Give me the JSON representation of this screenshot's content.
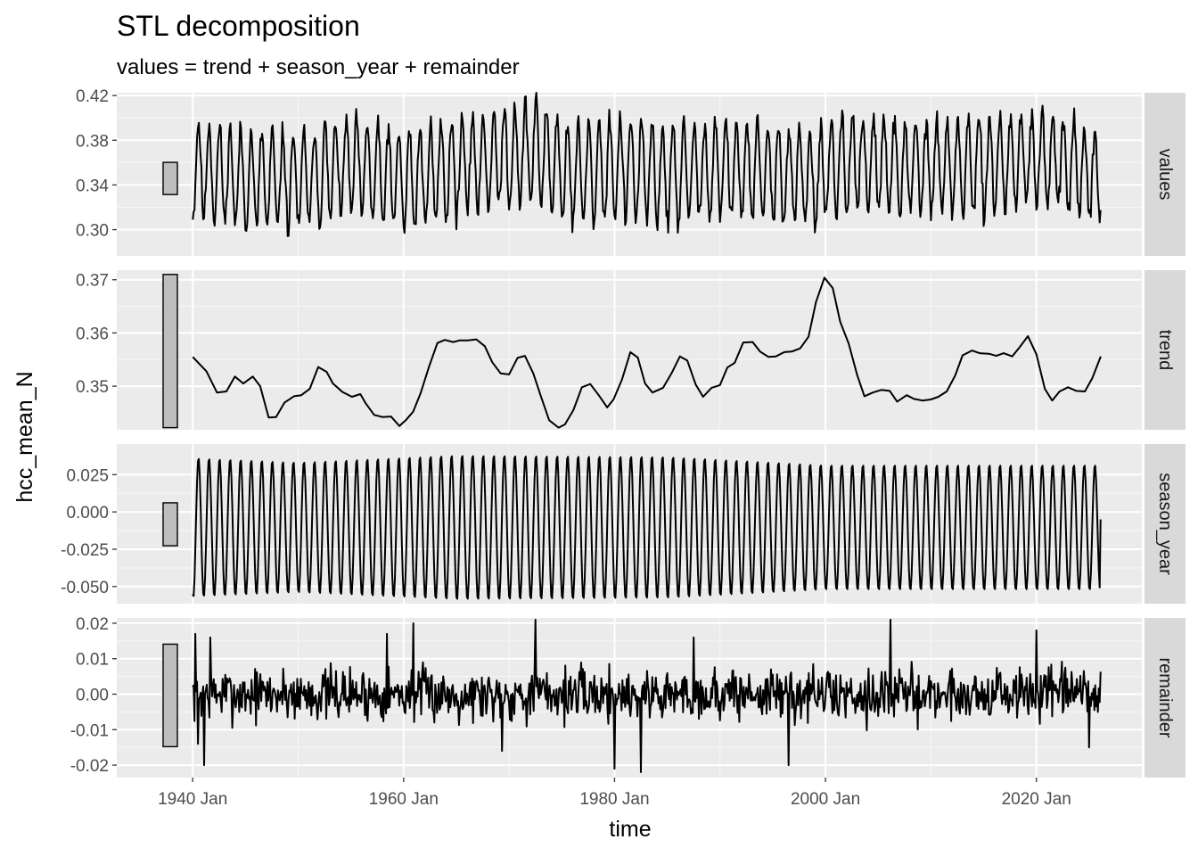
{
  "chart_data": {
    "type": "line",
    "title": "STL decomposition",
    "subtitle": "values = trend + season_year + remainder",
    "xlabel": "time",
    "ylabel": "hcc_mean_N",
    "x_range": [
      "1940 Jan",
      "2026 Feb"
    ],
    "xlim": [
      1932.8,
      2030.0
    ],
    "x_ticks": [
      {
        "value": 1940,
        "label": "1940 Jan"
      },
      {
        "value": 1960,
        "label": "1960 Jan"
      },
      {
        "value": 1980,
        "label": "1980 Jan"
      },
      {
        "value": 2000,
        "label": "2000 Jan"
      },
      {
        "value": 2020,
        "label": "2020 Jan"
      }
    ],
    "x_minor_ticks": [
      1930,
      1950,
      1970,
      1990,
      2010,
      2030
    ],
    "grid": true,
    "facet_strip_position": "right",
    "panels": [
      {
        "name": "values",
        "ylim": [
          0.2765,
          0.4225
        ],
        "y_ticks": [
          0.3,
          0.34,
          0.38,
          0.42
        ],
        "y_tick_labels": [
          "0.30",
          "0.34",
          "0.38",
          "0.42"
        ],
        "scale_bar": [
          0.3314,
          0.3602
        ],
        "series": {
          "mean": 0.3545,
          "components": [
            {
              "period": 1,
              "start": 1940.0,
              "end": 2026.1,
              "amp": [
                [
                  1940,
                  0.044
                ],
                [
                  1960,
                  0.046
                ],
                [
                  1985,
                  0.047
                ],
                [
                  2026,
                  0.042
                ]
              ]
            }
          ],
          "drift": [
            [
              1940,
              0.3555
            ],
            [
              1945,
              0.3445
            ],
            [
              1950,
              0.3435
            ],
            [
              1955,
              0.357
            ],
            [
              1960,
              0.343
            ],
            [
              1965,
              0.356
            ],
            [
              1972.5,
              0.3705
            ],
            [
              1976,
              0.348
            ],
            [
              1980,
              0.356
            ],
            [
              1985,
              0.3485
            ],
            [
              1990,
              0.355
            ],
            [
              1999,
              0.346
            ],
            [
              2003,
              0.3625
            ],
            [
              2007,
              0.3545
            ],
            [
              2015,
              0.357
            ],
            [
              2020,
              0.364
            ],
            [
              2026,
              0.3495
            ]
          ],
          "noise": 0.009,
          "seed": 11
        }
      },
      {
        "name": "trend",
        "ylim": [
          0.3418,
          0.3718
        ],
        "y_ticks": [
          0.35,
          0.36,
          0.37
        ],
        "y_tick_labels": [
          "0.35",
          "0.36",
          "0.37"
        ],
        "scale_bar": [
          0.3422,
          0.371
        ],
        "series": {
          "points": [
            [
              1940.0,
              0.3555
            ],
            [
              1941.3,
              0.3528
            ],
            [
              1942.3,
              0.3488
            ],
            [
              1943.2,
              0.349
            ],
            [
              1944.0,
              0.3518
            ],
            [
              1944.8,
              0.3505
            ],
            [
              1945.7,
              0.3518
            ],
            [
              1946.4,
              0.35
            ],
            [
              1947.2,
              0.3441
            ],
            [
              1947.9,
              0.3442
            ],
            [
              1948.7,
              0.3469
            ],
            [
              1949.6,
              0.3481
            ],
            [
              1950.3,
              0.3483
            ],
            [
              1951.1,
              0.3495
            ],
            [
              1951.9,
              0.3536
            ],
            [
              1952.7,
              0.3527
            ],
            [
              1953.3,
              0.3505
            ],
            [
              1954.2,
              0.3489
            ],
            [
              1955.1,
              0.348
            ],
            [
              1955.9,
              0.3485
            ],
            [
              1956.4,
              0.3468
            ],
            [
              1957.2,
              0.3446
            ],
            [
              1958.0,
              0.3442
            ],
            [
              1958.8,
              0.3443
            ],
            [
              1959.6,
              0.3425
            ],
            [
              1960.2,
              0.3436
            ],
            [
              1960.9,
              0.3452
            ],
            [
              1961.6,
              0.3486
            ],
            [
              1962.4,
              0.3536
            ],
            [
              1963.2,
              0.3581
            ],
            [
              1963.9,
              0.3587
            ],
            [
              1964.7,
              0.3583
            ],
            [
              1965.3,
              0.3586
            ],
            [
              1966.1,
              0.3586
            ],
            [
              1966.9,
              0.3588
            ],
            [
              1967.7,
              0.3575
            ],
            [
              1968.4,
              0.3545
            ],
            [
              1969.2,
              0.3524
            ],
            [
              1970.0,
              0.3522
            ],
            [
              1970.8,
              0.3553
            ],
            [
              1971.5,
              0.3557
            ],
            [
              1972.3,
              0.3524
            ],
            [
              1973.0,
              0.3482
            ],
            [
              1973.8,
              0.3436
            ],
            [
              1974.7,
              0.3422
            ],
            [
              1975.3,
              0.3428
            ],
            [
              1976.1,
              0.3455
            ],
            [
              1976.9,
              0.3498
            ],
            [
              1977.7,
              0.3504
            ],
            [
              1978.5,
              0.3483
            ],
            [
              1979.3,
              0.346
            ],
            [
              1979.9,
              0.3475
            ],
            [
              1980.7,
              0.3512
            ],
            [
              1981.5,
              0.3564
            ],
            [
              1982.2,
              0.3554
            ],
            [
              1982.9,
              0.3505
            ],
            [
              1983.6,
              0.3488
            ],
            [
              1984.6,
              0.3497
            ],
            [
              1985.4,
              0.3524
            ],
            [
              1986.2,
              0.3556
            ],
            [
              1986.9,
              0.3548
            ],
            [
              1987.7,
              0.3503
            ],
            [
              1988.4,
              0.348
            ],
            [
              1989.2,
              0.3497
            ],
            [
              1990.0,
              0.3502
            ],
            [
              1990.7,
              0.3535
            ],
            [
              1991.4,
              0.3544
            ],
            [
              1992.2,
              0.3582
            ],
            [
              1993.1,
              0.3583
            ],
            [
              1993.8,
              0.3565
            ],
            [
              1994.6,
              0.3555
            ],
            [
              1995.3,
              0.3556
            ],
            [
              1996.1,
              0.3564
            ],
            [
              1996.8,
              0.3565
            ],
            [
              1997.6,
              0.3571
            ],
            [
              1998.4,
              0.3593
            ],
            [
              1999.1,
              0.3658
            ],
            [
              1999.9,
              0.3704
            ],
            [
              2000.7,
              0.3684
            ],
            [
              2001.4,
              0.3621
            ],
            [
              2002.2,
              0.358
            ],
            [
              2003.0,
              0.3521
            ],
            [
              2003.7,
              0.3481
            ],
            [
              2004.5,
              0.3488
            ],
            [
              2005.3,
              0.3493
            ],
            [
              2006.1,
              0.3491
            ],
            [
              2006.8,
              0.3471
            ],
            [
              2007.7,
              0.3483
            ],
            [
              2008.4,
              0.3476
            ],
            [
              2009.2,
              0.3473
            ],
            [
              2010.0,
              0.3475
            ],
            [
              2010.7,
              0.348
            ],
            [
              2011.5,
              0.349
            ],
            [
              2012.3,
              0.352
            ],
            [
              2013.0,
              0.3558
            ],
            [
              2013.9,
              0.3567
            ],
            [
              2014.6,
              0.3562
            ],
            [
              2015.5,
              0.3561
            ],
            [
              2016.2,
              0.3557
            ],
            [
              2016.9,
              0.3562
            ],
            [
              2017.7,
              0.3556
            ],
            [
              2018.4,
              0.3573
            ],
            [
              2019.2,
              0.3594
            ],
            [
              2020.0,
              0.356
            ],
            [
              2020.8,
              0.3495
            ],
            [
              2021.5,
              0.3473
            ],
            [
              2022.2,
              0.349
            ],
            [
              2023.0,
              0.3498
            ],
            [
              2023.8,
              0.3491
            ],
            [
              2024.6,
              0.349
            ],
            [
              2025.3,
              0.3515
            ],
            [
              2026.1,
              0.3556
            ]
          ],
          "xlim": [
            1932.8,
            2030.0
          ]
        }
      },
      {
        "name": "season_year",
        "ylim": [
          -0.0615,
          0.0455
        ],
        "y_ticks": [
          -0.05,
          -0.025,
          0.0,
          0.025
        ],
        "y_tick_labels": [
          "-0.050",
          "-0.025",
          "0.000",
          "0.025"
        ],
        "scale_bar": [
          -0.0227,
          0.0061
        ],
        "series": {
          "mean": -0.0104,
          "components": [
            {
              "period": 1,
              "start": 1940.0,
              "end": 2026.1,
              "amp": [
                [
                  1940,
                  0.0495
                ],
                [
                  1950,
                  0.0465
                ],
                [
                  1965,
                  0.0515
                ],
                [
                  1985,
                  0.0505
                ],
                [
                  2000,
                  0.0445
                ],
                [
                  2026,
                  0.0445
                ]
              ]
            }
          ],
          "drift": [
            [
              1940,
              0.0
            ],
            [
              2026,
              0.0
            ]
          ],
          "noise": 0.0,
          "seed": 3,
          "end_value": -0.005
        }
      },
      {
        "name": "remainder",
        "ylim": [
          -0.0235,
          0.0215
        ],
        "y_ticks": [
          -0.02,
          -0.01,
          0.0,
          0.01,
          0.02
        ],
        "y_tick_labels": [
          "-0.02",
          "-0.01",
          "0.00",
          "0.01",
          "0.02"
        ],
        "scale_bar": [
          -0.0148,
          0.0141
        ],
        "series": {
          "mean": 0.0,
          "components": [],
          "drift": [
            [
              1940,
              0.0
            ],
            [
              2026,
              0.0
            ]
          ],
          "noise": 0.0062,
          "seed": 7,
          "spikes": [
            [
              1940.25,
              0.017
            ],
            [
              1940.5,
              -0.014
            ],
            [
              1941.1,
              -0.02
            ],
            [
              1941.7,
              0.016
            ],
            [
              1958.4,
              0.017
            ],
            [
              1960.9,
              0.02
            ],
            [
              1969.3,
              -0.016
            ],
            [
              1972.5,
              0.021
            ],
            [
              1980.0,
              -0.021
            ],
            [
              1982.5,
              -0.022
            ],
            [
              1987.5,
              0.016
            ],
            [
              1996.5,
              -0.02
            ],
            [
              2006.2,
              0.021
            ],
            [
              2020.0,
              0.018
            ],
            [
              2025.0,
              -0.015
            ]
          ]
        }
      }
    ]
  }
}
